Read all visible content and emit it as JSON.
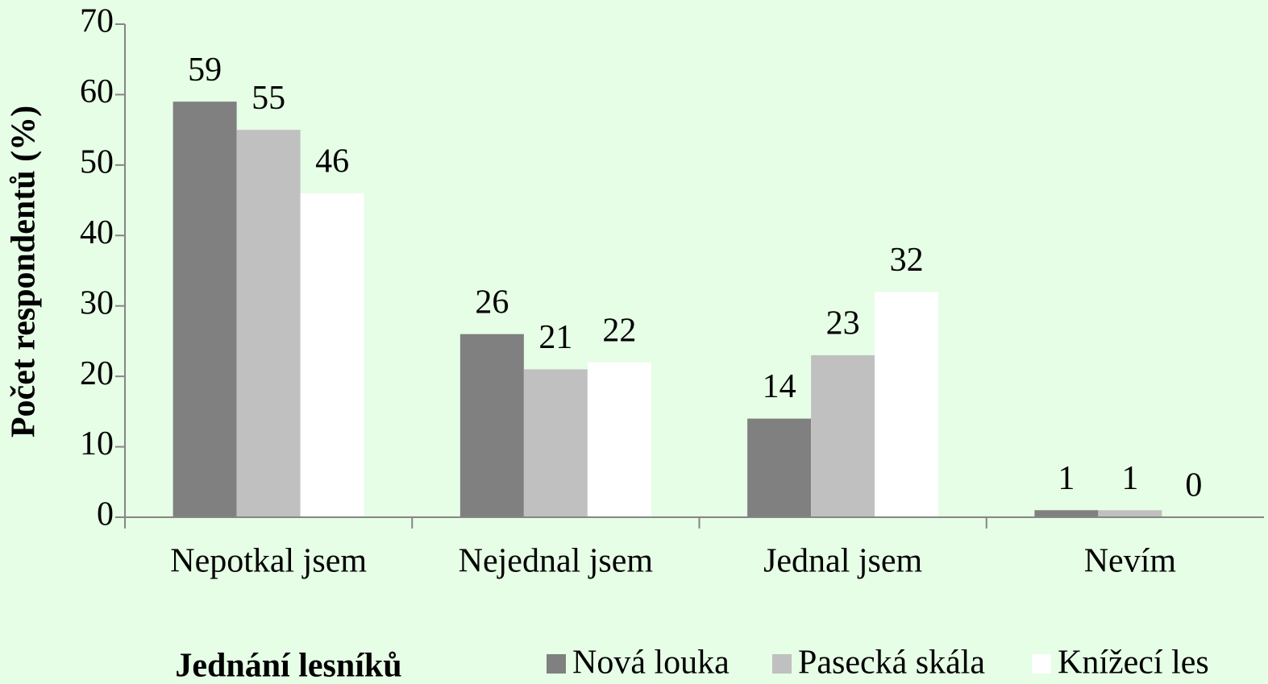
{
  "chart_data": {
    "type": "bar",
    "y_label": "Počet respondentů (%)",
    "x_label": "Jednání lesníků",
    "categories": [
      "Nepotkal jsem",
      "Nejednal jsem",
      "Jednal jsem",
      "Nevím"
    ],
    "series": [
      {
        "name": "Nová louka",
        "color": "#808080",
        "values": [
          59,
          26,
          14,
          1
        ]
      },
      {
        "name": "Pasecká skála",
        "color": "#c0c0c0",
        "values": [
          55,
          21,
          23,
          1
        ]
      },
      {
        "name": "Knížecí les",
        "color": "#ffffff",
        "values": [
          46,
          22,
          32,
          0
        ]
      }
    ],
    "ylim": [
      0,
      70
    ],
    "yticks": [
      0,
      10,
      20,
      30,
      40,
      50,
      60,
      70
    ],
    "grid": false
  }
}
